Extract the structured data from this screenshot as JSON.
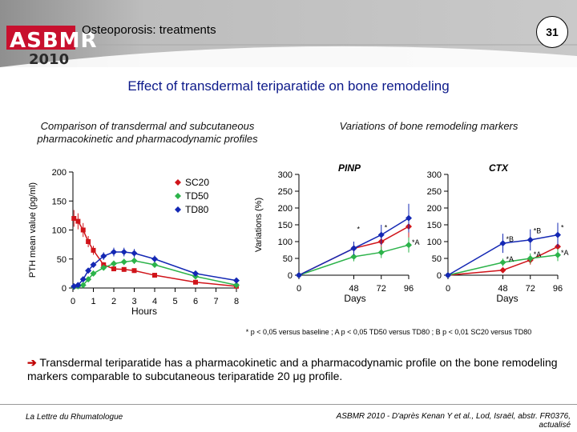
{
  "header": {
    "logo_text": "ASBMR",
    "logo_year": "2010",
    "title": "Osteoporosis: treatments",
    "slide_number": "31",
    "colors": {
      "band": "#b5b5b5",
      "title_blue": "#0d1a8a",
      "logo_red": "#c8102e"
    }
  },
  "main_title": "Effect of transdermal teriparatide on bone remodeling",
  "left_panel": {
    "subtitle": "Comparison of transdermal and subcutaneous pharmacokinetic and pharmacodynamic profiles"
  },
  "right_panel": {
    "subtitle": "Variations of bone remodeling markers"
  },
  "chart_data": [
    {
      "type": "line",
      "title": "",
      "xlabel": "Hours",
      "ylabel": "PTH mean value (pg/ml)",
      "xlim": [
        0,
        8
      ],
      "ylim": [
        0,
        200
      ],
      "xticks": [
        "0",
        "1",
        "2",
        "3",
        "4",
        "5",
        "6",
        "7",
        "8"
      ],
      "yticks": [
        "0",
        "50",
        "100",
        "150",
        "200"
      ],
      "legend": [
        "SC20",
        "TD50",
        "TD80"
      ],
      "legend_position": "top-right",
      "series": [
        {
          "name": "SC20",
          "color": "#d0141a",
          "marker": "square",
          "x": [
            0.05,
            0.25,
            0.5,
            0.75,
            1.0,
            1.5,
            2.0,
            2.5,
            3.0,
            4.0,
            6.0,
            8.0
          ],
          "y": [
            120,
            115,
            100,
            80,
            65,
            40,
            33,
            32,
            30,
            22,
            10,
            3
          ]
        },
        {
          "name": "TD50",
          "color": "#2cb34a",
          "marker": "diamond",
          "x": [
            0.05,
            0.25,
            0.5,
            0.75,
            1.0,
            1.5,
            2.0,
            2.5,
            3.0,
            4.0,
            6.0,
            8.0
          ],
          "y": [
            2,
            3,
            5,
            15,
            25,
            35,
            42,
            45,
            47,
            40,
            20,
            5
          ]
        },
        {
          "name": "TD80",
          "color": "#1428b4",
          "marker": "diamond",
          "x": [
            0.05,
            0.25,
            0.5,
            0.75,
            1.0,
            1.5,
            2.0,
            2.5,
            3.0,
            4.0,
            6.0,
            8.0
          ],
          "y": [
            3,
            5,
            15,
            30,
            40,
            55,
            62,
            62,
            60,
            50,
            25,
            13
          ]
        }
      ]
    },
    {
      "type": "line",
      "title": "PINP",
      "xlabel": "Days",
      "ylabel": "Variations (%)",
      "xlim": [
        0,
        96
      ],
      "ylim": [
        0,
        300
      ],
      "xticks": [
        "0",
        "48",
        "72",
        "96"
      ],
      "yticks": [
        "0",
        "50",
        "100",
        "150",
        "200",
        "250",
        "300"
      ],
      "series": [
        {
          "name": "SC20",
          "color": "#d0141a",
          "x": [
            0,
            48,
            72,
            96
          ],
          "y": [
            0,
            80,
            100,
            145
          ]
        },
        {
          "name": "TD50",
          "color": "#2cb34a",
          "x": [
            0,
            48,
            72,
            96
          ],
          "y": [
            0,
            55,
            68,
            90
          ]
        },
        {
          "name": "TD80",
          "color": "#1428b4",
          "x": [
            0,
            48,
            72,
            96
          ],
          "y": [
            0,
            80,
            120,
            170
          ]
        }
      ],
      "annotations": [
        {
          "x": 48,
          "y": 130,
          "text": "*"
        },
        {
          "x": 72,
          "y": 135,
          "text": "*"
        },
        {
          "x": 96,
          "y": 90,
          "text": "*A"
        }
      ]
    },
    {
      "type": "line",
      "title": "CTX",
      "xlabel": "Days",
      "ylabel": "",
      "xlim": [
        0,
        96
      ],
      "ylim": [
        0,
        300
      ],
      "xticks": [
        "0",
        "48",
        "72",
        "96"
      ],
      "yticks": [
        "0",
        "50",
        "100",
        "150",
        "200",
        "250",
        "300"
      ],
      "series": [
        {
          "name": "SC20",
          "color": "#d0141a",
          "x": [
            0,
            48,
            72,
            96
          ],
          "y": [
            0,
            15,
            45,
            85
          ]
        },
        {
          "name": "TD50",
          "color": "#2cb34a",
          "x": [
            0,
            48,
            72,
            96
          ],
          "y": [
            0,
            38,
            50,
            60
          ]
        },
        {
          "name": "TD80",
          "color": "#1428b4",
          "x": [
            0,
            48,
            72,
            96
          ],
          "y": [
            0,
            95,
            105,
            120
          ]
        }
      ],
      "annotations": [
        {
          "x": 48,
          "y": 100,
          "text": "*B"
        },
        {
          "x": 72,
          "y": 125,
          "text": "*B"
        },
        {
          "x": 48,
          "y": 40,
          "text": "*A"
        },
        {
          "x": 72,
          "y": 55,
          "text": "*A"
        },
        {
          "x": 96,
          "y": 60,
          "text": "*A"
        },
        {
          "x": 96,
          "y": 135,
          "text": "*"
        }
      ]
    }
  ],
  "footnote": "* p < 0,05 versus baseline ; A p < 0,05 TD50 versus TD80 ; B p < 0,01 SC20 versus TD80",
  "conclusion": {
    "arrow": "➔",
    "text": "Transdermal teriparatide has a pharmacokinetic and a pharmacodynamic profile on the bone remodeling markers comparable to subcutaneous teriparatide 20 μg profile."
  },
  "footer": {
    "left": "La Lettre du Rhumatologue",
    "right": "ASBMR 2010 - D'après Kenan Y et al., Lod, Israël, abstr. FR0376, actualisé"
  }
}
